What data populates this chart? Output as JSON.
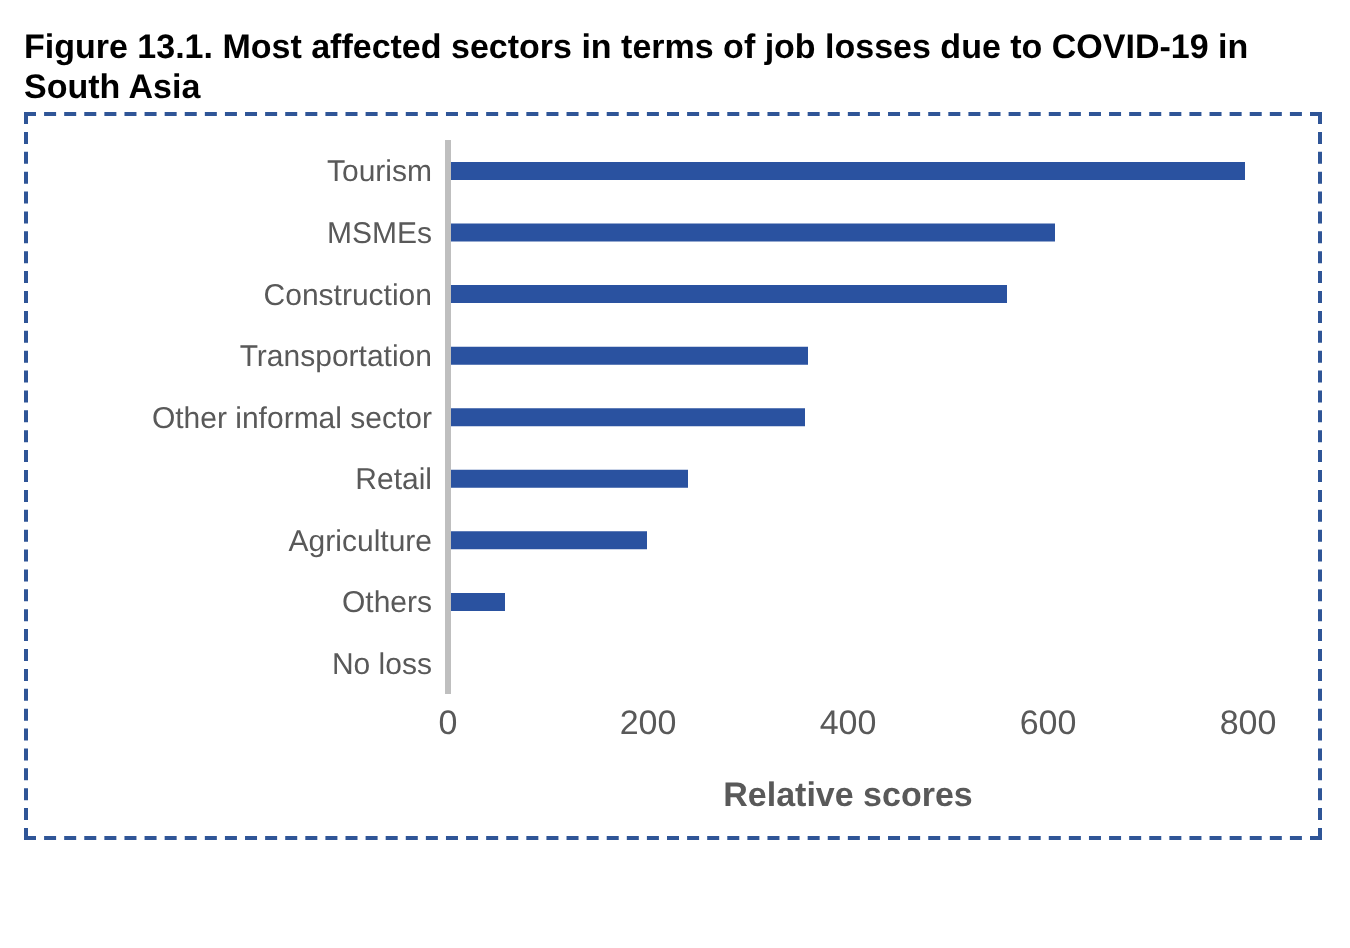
{
  "chart_data": {
    "type": "bar",
    "orientation": "horizontal",
    "title": "Figure 13.1. Most affected sectors in terms of job losses due to COVID-19 in South Asia",
    "categories": [
      "Tourism",
      "MSMEs",
      "Construction",
      "Transportation",
      "Other informal sector",
      "Retail",
      "Agriculture",
      "Others",
      "No loss"
    ],
    "values": [
      797,
      607,
      559,
      360,
      357,
      240,
      199,
      57,
      0
    ],
    "color": "#2a52a0",
    "xlim": [
      0,
      800
    ],
    "xticks": [
      0,
      200,
      400,
      600,
      800
    ],
    "xlabel": "Relative scores",
    "grid": false
  }
}
